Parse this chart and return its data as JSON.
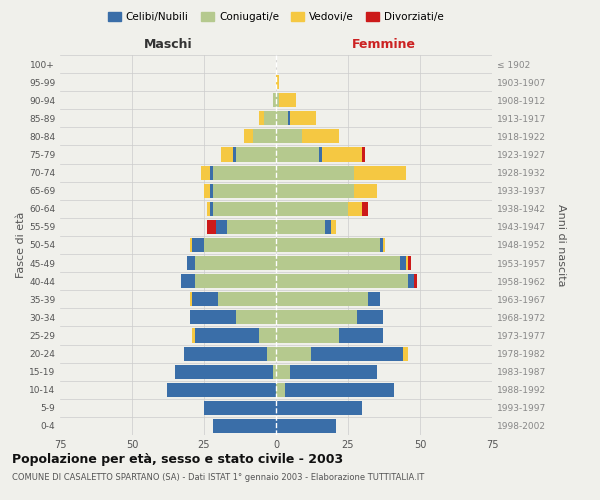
{
  "age_groups": [
    "0-4",
    "5-9",
    "10-14",
    "15-19",
    "20-24",
    "25-29",
    "30-34",
    "35-39",
    "40-44",
    "45-49",
    "50-54",
    "55-59",
    "60-64",
    "65-69",
    "70-74",
    "75-79",
    "80-84",
    "85-89",
    "90-94",
    "95-99",
    "100+"
  ],
  "birth_years": [
    "1998-2002",
    "1993-1997",
    "1988-1992",
    "1983-1987",
    "1978-1982",
    "1973-1977",
    "1968-1972",
    "1963-1967",
    "1958-1962",
    "1953-1957",
    "1948-1952",
    "1943-1947",
    "1938-1942",
    "1933-1937",
    "1928-1932",
    "1923-1927",
    "1918-1922",
    "1913-1917",
    "1908-1912",
    "1903-1907",
    "≤ 1902"
  ],
  "maschi": {
    "celibi": [
      22,
      25,
      38,
      34,
      29,
      22,
      16,
      9,
      5,
      3,
      4,
      4,
      1,
      1,
      1,
      1,
      0,
      0,
      0,
      0,
      0
    ],
    "coniugati": [
      0,
      0,
      0,
      1,
      3,
      6,
      14,
      20,
      28,
      28,
      25,
      17,
      22,
      22,
      22,
      14,
      8,
      4,
      1,
      0,
      0
    ],
    "vedovi": [
      0,
      0,
      0,
      0,
      0,
      1,
      0,
      1,
      0,
      0,
      1,
      0,
      1,
      2,
      3,
      4,
      3,
      2,
      0,
      0,
      0
    ],
    "divorziati": [
      0,
      0,
      0,
      0,
      0,
      0,
      0,
      0,
      0,
      0,
      0,
      3,
      0,
      0,
      0,
      0,
      0,
      0,
      0,
      0,
      0
    ]
  },
  "femmine": {
    "nubili": [
      21,
      30,
      38,
      30,
      32,
      15,
      9,
      4,
      2,
      2,
      1,
      2,
      0,
      0,
      0,
      1,
      0,
      1,
      0,
      0,
      0
    ],
    "coniugate": [
      0,
      0,
      3,
      5,
      12,
      22,
      28,
      32,
      46,
      43,
      36,
      17,
      25,
      27,
      27,
      15,
      9,
      4,
      1,
      0,
      0
    ],
    "vedove": [
      0,
      0,
      0,
      0,
      2,
      0,
      0,
      0,
      0,
      1,
      1,
      2,
      5,
      8,
      18,
      14,
      13,
      9,
      6,
      1,
      0
    ],
    "divorziate": [
      0,
      0,
      0,
      0,
      0,
      0,
      0,
      0,
      1,
      1,
      0,
      0,
      2,
      0,
      0,
      1,
      0,
      0,
      0,
      0,
      0
    ]
  },
  "colors": {
    "celibi": "#3a6ea8",
    "coniugati": "#b5c98e",
    "vedovi": "#f5c842",
    "divorziati": "#cc1a1a"
  },
  "xlim": 75,
  "title": "Popolazione per età, sesso e stato civile - 2003",
  "subtitle": "COMUNE DI CASALETTO SPARTANO (SA) - Dati ISTAT 1° gennaio 2003 - Elaborazione TUTTITALIA.IT",
  "ylabel_left": "Fasce di età",
  "ylabel_right": "Anni di nascita",
  "xlabel_left": "Maschi",
  "xlabel_right": "Femmine",
  "background_color": "#f0f0eb",
  "grid_color": "#cccccc"
}
